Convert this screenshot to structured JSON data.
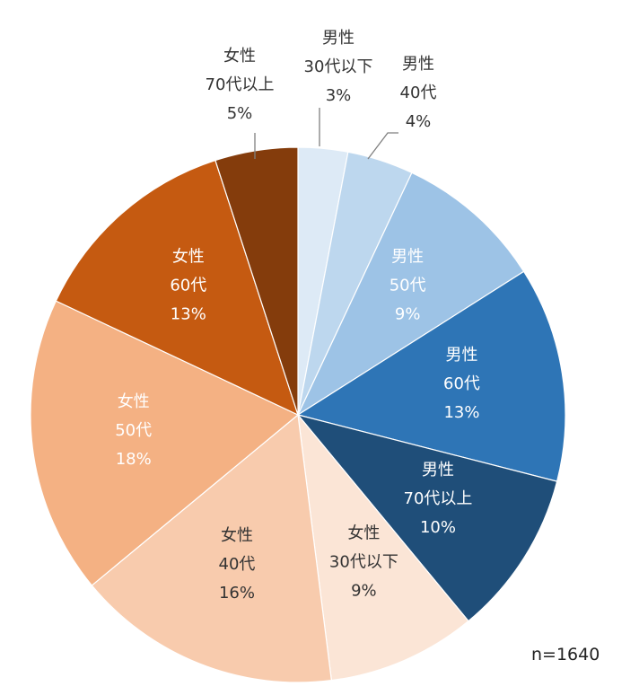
{
  "chart_data": {
    "type": "pie",
    "slices": [
      {
        "label": "男性\n30代以下\n3%",
        "value": 3,
        "color": "#DDEAF6",
        "text_color": "#333333",
        "outside": true
      },
      {
        "label": "男性\n40代\n4%",
        "value": 4,
        "color": "#BDD7EE",
        "text_color": "#333333",
        "outside": true
      },
      {
        "label": "男性\n50代\n9%",
        "value": 9,
        "color": "#9DC3E6",
        "text_color": "#ffffff",
        "outside": false
      },
      {
        "label": "男性\n60代\n13%",
        "value": 13,
        "color": "#2E75B6",
        "text_color": "#ffffff",
        "outside": false
      },
      {
        "label": "男性\n70代以上\n10%",
        "value": 10,
        "color": "#1F4E79",
        "text_color": "#ffffff",
        "outside": false
      },
      {
        "label": "女性\n30代以下\n9%",
        "value": 9,
        "color": "#FBE5D6",
        "text_color": "#333333",
        "outside": false
      },
      {
        "label": "女性\n40代\n16%",
        "value": 16,
        "color": "#F8CBAD",
        "text_color": "#333333",
        "outside": false
      },
      {
        "label": "女性\n50代\n18%",
        "value": 18,
        "color": "#F4B183",
        "text_color": "#ffffff",
        "outside": false
      },
      {
        "label": "女性\n60代\n13%",
        "value": 13,
        "color": "#C55A11",
        "text_color": "#ffffff",
        "outside": false
      },
      {
        "label": "女性\n70代以上\n5%",
        "value": 5,
        "color": "#843C0C",
        "text_color": "#333333",
        "outside": true
      }
    ],
    "start_angle": "top",
    "direction": "clockwise",
    "legend": "none"
  },
  "annotation": {
    "sample_size": "n=1640"
  }
}
